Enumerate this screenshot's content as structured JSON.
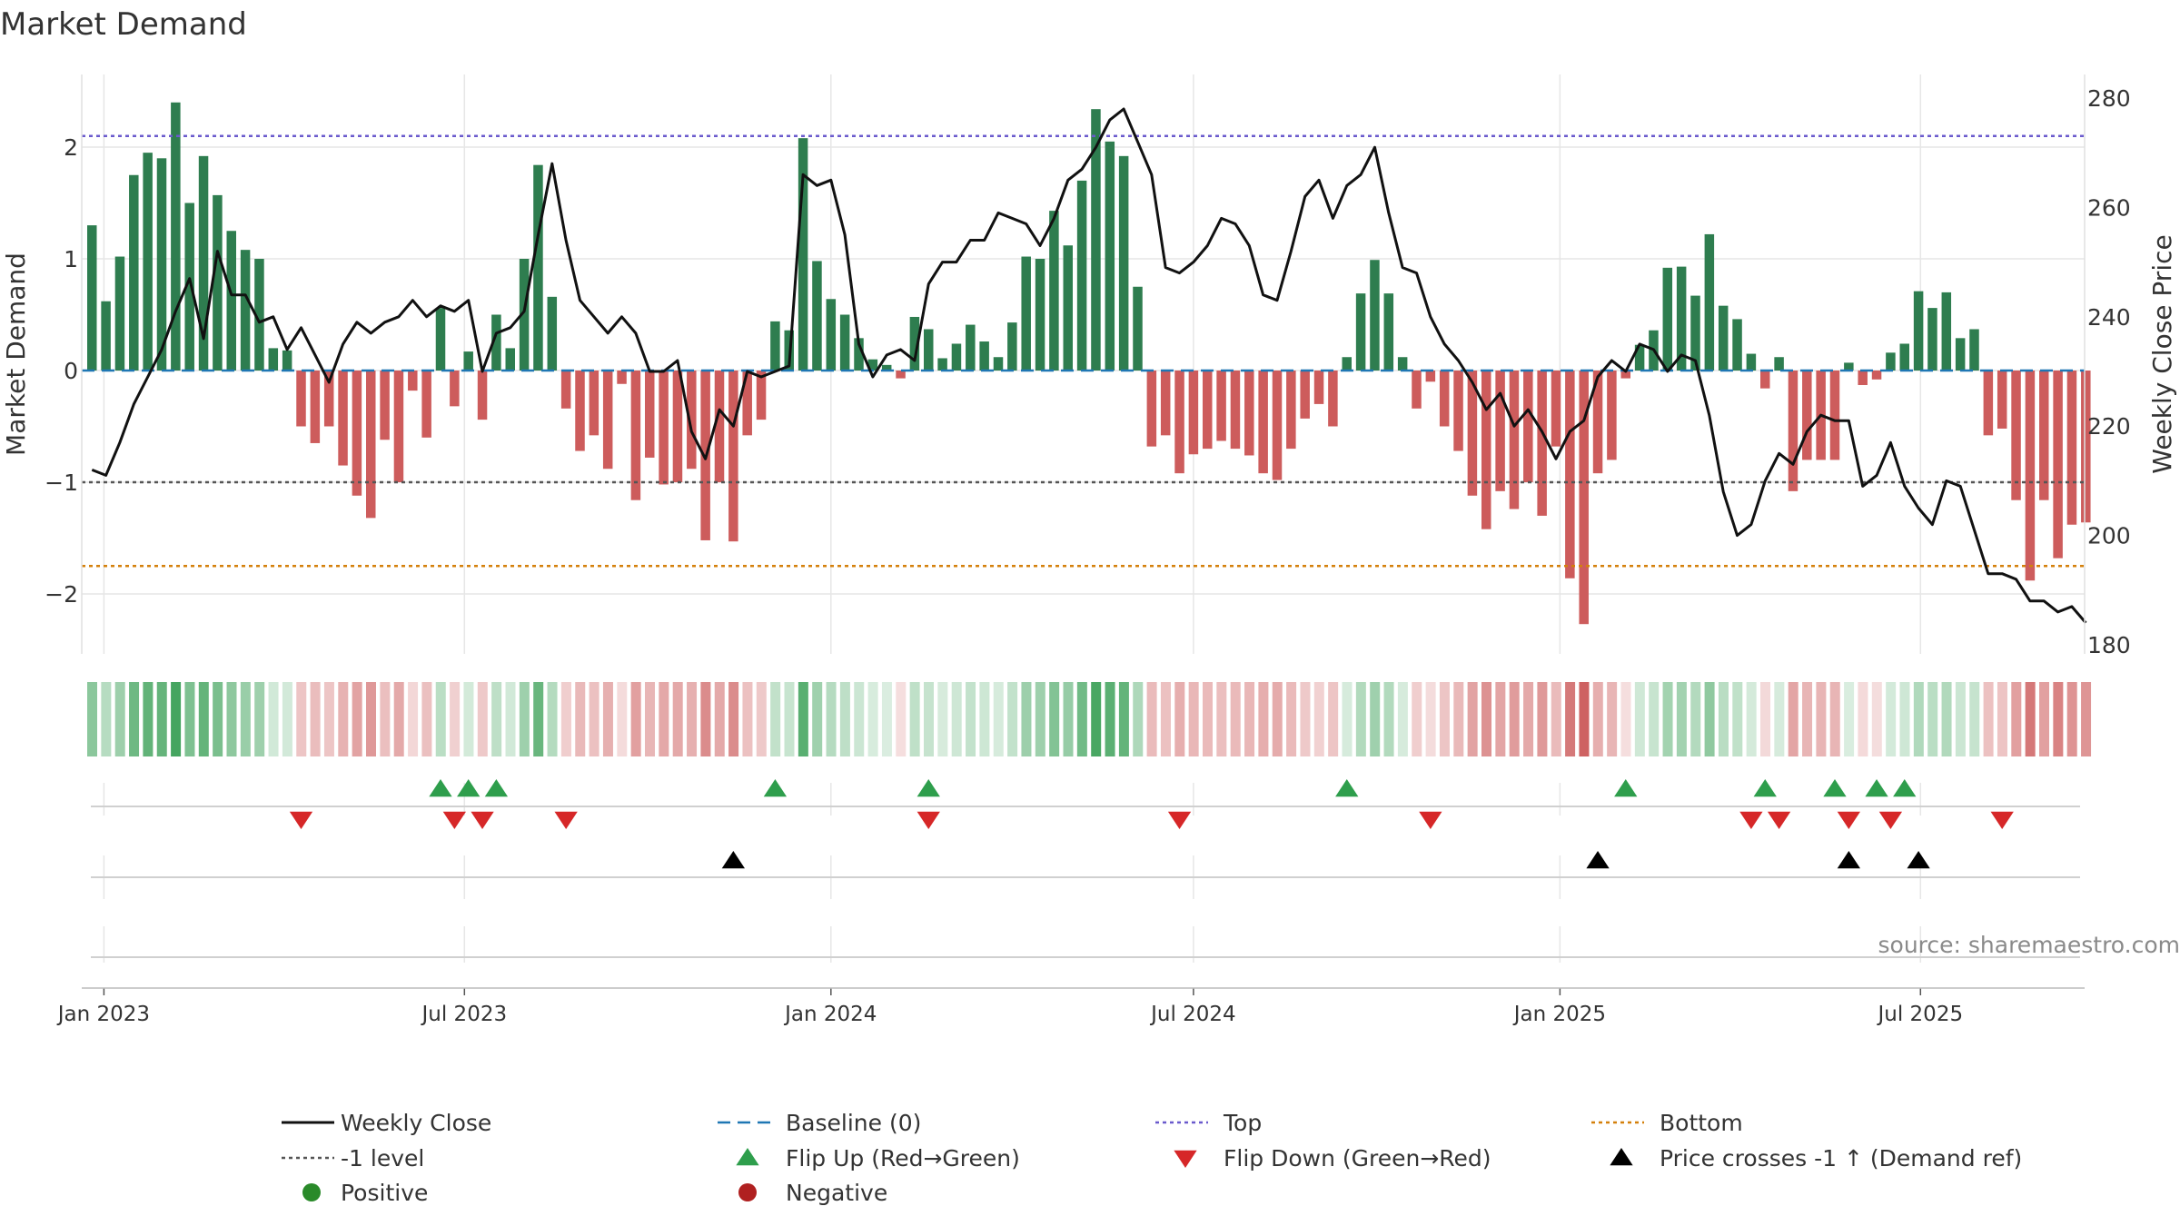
{
  "chart_data": {
    "type": "bar+line",
    "title": "Market Demand",
    "ylabel_left": "Market Demand",
    "ylabel_right": "Weekly Close Price",
    "ylim_left": [
      -2.5,
      2.5
    ],
    "ylim_right": [
      178,
      280
    ],
    "yticks_left": [
      2,
      1,
      0,
      -1,
      -2
    ],
    "yticks_left_labels": [
      "2",
      "1",
      "0",
      "−1",
      "−2"
    ],
    "yticks_right": [
      280,
      260,
      240,
      220,
      200,
      180
    ],
    "yticks_right_labels": [
      "280",
      "260",
      "240",
      "220",
      "200",
      "180"
    ],
    "x_start": "2022-12-26",
    "week_step": 7,
    "xticks": [
      {
        "date": "2023-01-01",
        "label": "Jan 2023"
      },
      {
        "date": "2023-07-01",
        "label": "Jul 2023"
      },
      {
        "date": "2024-01-01",
        "label": "Jan 2024"
      },
      {
        "date": "2024-07-01",
        "label": "Jul 2024"
      },
      {
        "date": "2025-01-01",
        "label": "Jan 2025"
      },
      {
        "date": "2025-07-01",
        "label": "Jul 2025"
      }
    ],
    "reference_lines": {
      "baseline": 0,
      "top": 2.1,
      "level": -1,
      "bottom": -1.75
    },
    "demand": [
      1.3,
      0.62,
      1.02,
      1.75,
      1.95,
      1.9,
      2.4,
      1.5,
      1.92,
      1.57,
      1.25,
      1.08,
      1.0,
      0.2,
      0.18,
      -0.5,
      -0.65,
      -0.5,
      -0.85,
      -1.12,
      -1.32,
      -0.62,
      -1.0,
      -0.18,
      -0.6,
      0.56,
      -0.32,
      0.17,
      -0.44,
      0.5,
      0.2,
      1.0,
      1.84,
      0.66,
      -0.34,
      -0.72,
      -0.58,
      -0.88,
      -0.12,
      -1.16,
      -0.78,
      -1.02,
      -1.0,
      -0.88,
      -1.52,
      -1.0,
      -1.53,
      -0.58,
      -0.44,
      0.44,
      0.36,
      2.08,
      0.98,
      0.64,
      0.5,
      0.29,
      0.1,
      0.05,
      -0.07,
      0.48,
      0.37,
      0.11,
      0.24,
      0.41,
      0.26,
      0.12,
      0.43,
      1.02,
      1.0,
      1.43,
      1.12,
      1.7,
      2.34,
      2.05,
      1.92,
      0.75,
      -0.68,
      -0.58,
      -0.92,
      -0.75,
      -0.7,
      -0.63,
      -0.7,
      -0.76,
      -0.92,
      -0.98,
      -0.7,
      -0.43,
      -0.3,
      -0.5,
      0.12,
      0.69,
      0.99,
      0.69,
      0.12,
      -0.34,
      -0.1,
      -0.5,
      -0.72,
      -1.12,
      -1.42,
      -1.08,
      -1.24,
      -1.0,
      -1.3,
      -0.68,
      -1.86,
      -2.27,
      -0.92,
      -0.8,
      -0.07,
      0.23,
      0.36,
      0.92,
      0.93,
      0.67,
      1.22,
      0.58,
      0.46,
      0.15,
      -0.16,
      0.12,
      -1.08,
      -0.8,
      -0.8,
      -0.8,
      0.07,
      -0.13,
      -0.08,
      0.16,
      0.24,
      0.71,
      0.56,
      0.7,
      0.29,
      0.37,
      -0.58,
      -0.52,
      -1.16,
      -1.88,
      -1.16,
      -1.68,
      -1.38,
      -1.36
    ],
    "price": [
      212,
      211,
      217,
      224,
      229,
      234,
      241,
      247,
      236,
      252,
      244,
      244,
      239,
      240,
      234,
      238,
      233,
      228,
      235,
      239,
      237,
      239,
      240,
      243,
      240,
      242,
      241,
      243,
      230,
      237,
      238,
      241,
      255,
      268,
      254,
      243,
      240,
      237,
      240,
      237,
      230,
      230,
      232,
      219,
      214,
      223,
      220,
      230,
      229,
      230,
      231,
      266,
      264,
      265,
      255,
      235,
      229,
      233,
      234,
      232,
      246,
      250,
      250,
      254,
      254,
      259,
      258,
      257,
      253,
      258,
      265,
      267,
      271,
      276,
      278,
      272,
      266,
      249,
      248,
      250,
      253,
      258,
      257,
      253,
      244,
      243,
      252,
      262,
      265,
      258,
      264,
      266,
      271,
      259,
      249,
      248,
      240,
      235,
      232,
      228,
      223,
      226,
      220,
      223,
      219,
      214,
      219,
      221,
      229,
      232,
      230,
      235,
      234,
      230,
      233,
      232,
      222,
      208,
      200,
      202,
      210,
      215,
      213,
      219,
      222,
      221,
      221,
      209,
      211,
      217,
      209,
      205,
      202,
      210,
      209,
      201,
      193,
      193,
      192,
      188,
      188,
      186,
      187,
      184
    ]
  },
  "signals": {
    "flip_up_weeks": [
      25,
      27,
      29,
      49,
      60,
      90,
      110,
      120,
      125,
      128,
      130
    ],
    "flip_down_weeks": [
      15,
      26,
      28,
      34,
      60,
      78,
      96,
      119,
      121,
      126,
      129,
      137
    ],
    "price_cross_weeks": [
      46,
      108,
      126,
      131
    ]
  },
  "source_text": "source: sharemaestro.com",
  "legend": [
    {
      "label": "Weekly Close",
      "symbol": "solid-line",
      "color": "#111111"
    },
    {
      "label": "Baseline (0)",
      "symbol": "dashed-line",
      "color": "#1f77b4"
    },
    {
      "label": "Top",
      "symbol": "dotted-line",
      "color": "#6a5acd"
    },
    {
      "label": "Bottom",
      "symbol": "dotted-line",
      "color": "#d4800b"
    },
    {
      "label": "-1 level",
      "symbol": "dotted-line",
      "color": "#555555"
    },
    {
      "label": "Flip Up (Red→Green)",
      "symbol": "triangle-up",
      "color": "#2e9e4c"
    },
    {
      "label": "Flip Down (Green→Red)",
      "symbol": "triangle-down",
      "color": "#d62728"
    },
    {
      "label": "Price crosses -1 ↑ (Demand ref)",
      "symbol": "triangle-up",
      "color": "#000000"
    },
    {
      "label": "Positive",
      "symbol": "circle",
      "color": "#2a8a2a"
    },
    {
      "label": "Negative",
      "symbol": "circle",
      "color": "#b02020"
    }
  ],
  "colors": {
    "positive_bar": "#2e7d4f",
    "negative_bar": "#cd5c5c",
    "price_line": "#111111",
    "grid": "#e6e6e6",
    "flip_up": "#2e9e4c",
    "flip_down": "#d62728",
    "cross": "#000000"
  }
}
